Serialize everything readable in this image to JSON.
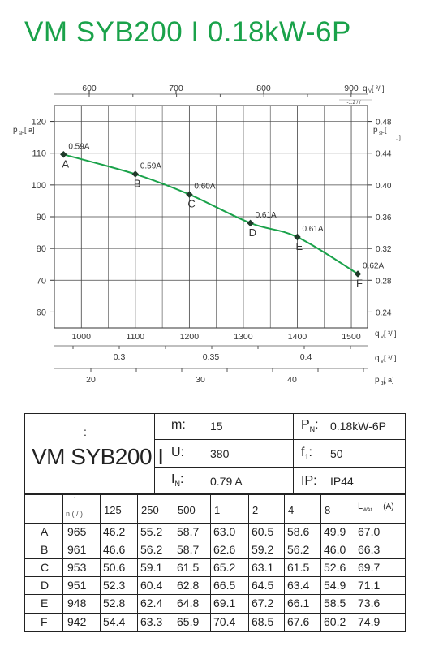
{
  "title": "VM SYB200 I 0.18kW-6P",
  "chart_data": {
    "type": "line",
    "top_axis": {
      "label": "q",
      "sub": "V",
      "unit": "[  ³/  ]",
      "ticks": [
        "600",
        "700",
        "800",
        "900"
      ],
      "note": "-1.2  /  /"
    },
    "left_axis": {
      "label": "p",
      "sub": "sF",
      "unit": "[  a]",
      "ticks": [
        "120",
        "110",
        "100",
        "90",
        "80",
        "70",
        "60"
      ],
      "ylim": [
        55,
        125
      ]
    },
    "right_axis": {
      "label": "p",
      "sub": "sF",
      "unit": "[",
      "unit2": ", ]",
      "ticks": [
        "0.48",
        "0.44",
        "0.40",
        "0.36",
        "0.32",
        "0.28",
        "0.24"
      ]
    },
    "bottom_axis": {
      "label": "q",
      "sub": "V",
      "unit": "[  ³/  ]",
      "ticks": [
        "1000",
        "1100",
        "1200",
        "1300",
        "1400",
        "1500"
      ],
      "xlim": [
        950,
        1530
      ]
    },
    "axis2": {
      "label": "q",
      "sub": "V",
      "unit": "[  ³/  ]",
      "ticks": [
        "0.3",
        "0.35",
        "0.4"
      ]
    },
    "axis3": {
      "label": "p",
      "sub": "dF",
      "unit": "[  a]",
      "ticks": [
        "20",
        "30",
        "40"
      ]
    },
    "series": [
      {
        "color": "#1aa24a",
        "points": [
          {
            "name": "A",
            "x": 967,
            "y": 109.6,
            "current": "0.59A"
          },
          {
            "name": "B",
            "x": 1100,
            "y": 103.4,
            "current": "0.59A"
          },
          {
            "name": "C",
            "x": 1200,
            "y": 97.0,
            "current": "0.60A"
          },
          {
            "name": "D",
            "x": 1313,
            "y": 88.0,
            "current": "0.61A"
          },
          {
            "name": "E",
            "x": 1400,
            "y": 83.6,
            "current": "0.61A"
          },
          {
            "name": "F",
            "x": 1512,
            "y": 72.0,
            "current": "0.62A"
          }
        ]
      }
    ]
  },
  "spec": {
    "colon": ":",
    "model": "VM SYB200 I",
    "m_label": "m:",
    "m_value": "15",
    "pn_label": "P",
    "pn_sub": "N",
    "pn_colon": ":",
    "pn_value": "0.18kW-6P",
    "u_label": "U:",
    "u_value": "380",
    "f_label": "f",
    "f_sub": "1",
    "f_colon": ":",
    "f_value": "50",
    "in_label": "I",
    "in_sub": "N",
    "in_colon": ":",
    "in_value": "0.79  A",
    "ip_label": "IP:",
    "ip_value": "IP44"
  },
  "noise": {
    "n_header": "n (  /   )",
    "n_tick": "`",
    "freq_headers": [
      "125",
      "250",
      "500",
      "1",
      "2",
      "4",
      "8"
    ],
    "lw_label": "L",
    "lw_sub": "WAt",
    "lw_unit": "(A)",
    "rows": [
      {
        "pt": "A",
        "n": "965",
        "v": [
          "46.2",
          "55.2",
          "58.7",
          "63.0",
          "60.5",
          "58.6",
          "49.9",
          "67.0"
        ]
      },
      {
        "pt": "B",
        "n": "961",
        "v": [
          "46.6",
          "56.2",
          "58.7",
          "62.6",
          "59.2",
          "56.2",
          "46.0",
          "66.3"
        ]
      },
      {
        "pt": "C",
        "n": "953",
        "v": [
          "50.6",
          "59.1",
          "61.5",
          "65.2",
          "63.1",
          "61.5",
          "52.6",
          "69.7"
        ]
      },
      {
        "pt": "D",
        "n": "951",
        "v": [
          "52.3",
          "60.4",
          "62.8",
          "66.5",
          "64.5",
          "63.4",
          "54.9",
          "71.1"
        ]
      },
      {
        "pt": "E",
        "n": "948",
        "v": [
          "52.8",
          "62.4",
          "64.8",
          "69.1",
          "67.2",
          "66.1",
          "58.5",
          "73.6"
        ]
      },
      {
        "pt": "F",
        "n": "942",
        "v": [
          "54.4",
          "63.3",
          "65.9",
          "70.4",
          "68.5",
          "67.6",
          "60.2",
          "74.9"
        ]
      }
    ]
  }
}
